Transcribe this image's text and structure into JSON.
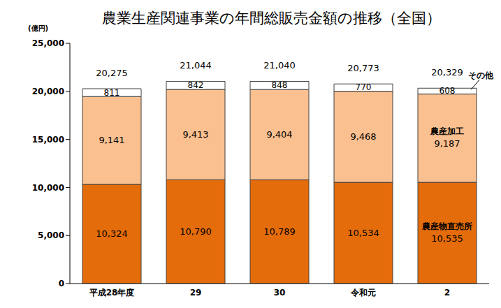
{
  "chart_data": {
    "type": "bar",
    "title": "農業生産関連事業の年間総販売金額の推移（全国）",
    "y_unit_label": "(億円)",
    "categories": [
      "平成28年度",
      "29",
      "30",
      "令和元",
      "2"
    ],
    "stacked": true,
    "data_labels": true,
    "grid": false,
    "ylim": [
      0,
      25000
    ],
    "yticks": [
      0,
      {
        "value": 5000,
        "label": "5,000"
      },
      {
        "value": 10000,
        "label": "10,000"
      },
      {
        "value": 15000,
        "label": "15,000"
      },
      {
        "value": 20000,
        "label": "20,000"
      },
      {
        "value": 25000,
        "label": "25,000"
      }
    ],
    "series": [
      {
        "name": "農産物直売所",
        "color": "#e46c0a",
        "values": [
          10324,
          10790,
          10789,
          10534,
          10535
        ],
        "value_labels": [
          "10,324",
          "10,790",
          "10,789",
          "10,534",
          "10,535"
        ]
      },
      {
        "name": "農産加工",
        "color": "#fac090",
        "values": [
          9141,
          9413,
          9404,
          9468,
          9187
        ],
        "value_labels": [
          "9,141",
          "9,413",
          "9,404",
          "9,468",
          "9,187"
        ]
      },
      {
        "name": "その他",
        "color": "#ffffff",
        "values": [
          811,
          842,
          848,
          770,
          608
        ],
        "value_labels": [
          "811",
          "842",
          "848",
          "770",
          "608"
        ]
      }
    ],
    "totals": {
      "values": [
        20275,
        21044,
        21040,
        20773,
        20329
      ],
      "value_labels": [
        "20,275",
        "21,044",
        "21,040",
        "20,773",
        "20,329"
      ]
    }
  }
}
